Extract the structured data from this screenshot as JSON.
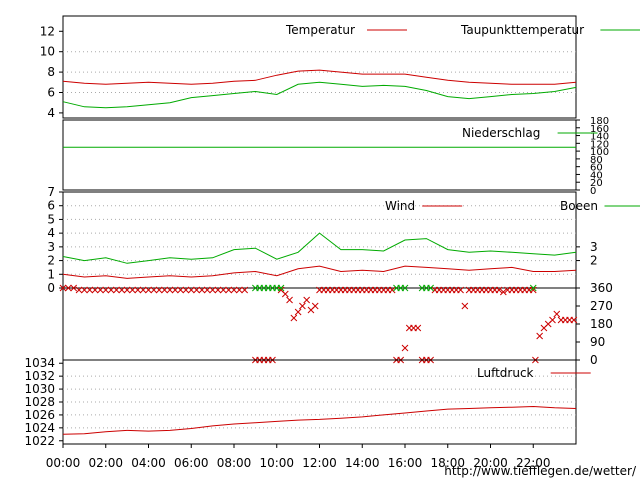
{
  "url": "http://www.tiefflegen.de/wetter/",
  "x_ticks": [
    "00:00",
    "02:00",
    "04:00",
    "06:00",
    "08:00",
    "10:00",
    "12:00",
    "14:00",
    "16:00",
    "18:00",
    "20:00",
    "22:00"
  ],
  "chart_data": [
    {
      "type": "line",
      "title": "",
      "x_range_hours": [
        0,
        24
      ],
      "ylim": [
        3.5,
        13.5
      ],
      "y_ticks": [
        4,
        6,
        8,
        10,
        12
      ],
      "legend_placement": "top-right",
      "grid": true,
      "series": [
        {
          "name": "Temperatur",
          "color": "#cc0000",
          "x": [
            0,
            1,
            2,
            3,
            4,
            5,
            6,
            7,
            8,
            9,
            10,
            11,
            12,
            13,
            14,
            15,
            16,
            17,
            18,
            19,
            20,
            21,
            22,
            23,
            24
          ],
          "values": [
            7.1,
            6.9,
            6.8,
            6.9,
            7.0,
            6.9,
            6.8,
            6.9,
            7.1,
            7.2,
            7.7,
            8.1,
            8.2,
            8.0,
            7.8,
            7.8,
            7.8,
            7.5,
            7.2,
            7.0,
            6.9,
            6.8,
            6.8,
            6.8,
            7.0
          ]
        },
        {
          "name": "Taupunkttemperatur",
          "color": "#00aa00",
          "x": [
            0,
            1,
            2,
            3,
            4,
            5,
            6,
            7,
            8,
            9,
            10,
            11,
            12,
            13,
            14,
            15,
            16,
            17,
            18,
            19,
            20,
            21,
            22,
            23,
            24
          ],
          "values": [
            5.1,
            4.6,
            4.5,
            4.6,
            4.8,
            5.0,
            5.5,
            5.7,
            5.9,
            6.1,
            5.8,
            6.8,
            7.0,
            6.8,
            6.6,
            6.7,
            6.6,
            6.2,
            5.6,
            5.4,
            5.6,
            5.8,
            5.9,
            6.1,
            6.5
          ]
        }
      ]
    },
    {
      "type": "line",
      "title": "",
      "x_range_hours": [
        0,
        24
      ],
      "ylim": [
        0,
        180
      ],
      "y_ticks": [
        0,
        20,
        40,
        60,
        80,
        100,
        120,
        140,
        160,
        180
      ],
      "legend_placement": "top-right",
      "series": [
        {
          "name": "Niederschlag",
          "color": "#00aa00",
          "x": [
            0,
            24
          ],
          "values": [
            110,
            110
          ]
        }
      ]
    },
    {
      "type": "line",
      "title": "",
      "x_range_hours": [
        0,
        24
      ],
      "ylim": [
        0,
        7
      ],
      "y_ticks": [
        0,
        1,
        2,
        3,
        4,
        5,
        6,
        7
      ],
      "right_ticks": [
        2,
        3
      ],
      "legend_placement": "top-right",
      "grid": true,
      "series": [
        {
          "name": "Wind",
          "color": "#cc0000",
          "x": [
            0,
            1,
            2,
            3,
            4,
            5,
            6,
            7,
            8,
            9,
            10,
            11,
            12,
            13,
            14,
            15,
            16,
            17,
            18,
            19,
            20,
            21,
            22,
            23,
            24
          ],
          "values": [
            1.0,
            0.8,
            0.9,
            0.7,
            0.8,
            0.9,
            0.8,
            0.9,
            1.1,
            1.2,
            0.9,
            1.4,
            1.6,
            1.2,
            1.3,
            1.2,
            1.6,
            1.5,
            1.4,
            1.3,
            1.4,
            1.5,
            1.2,
            1.2,
            1.3
          ]
        },
        {
          "name": "Boeen",
          "color": "#00aa00",
          "x": [
            0,
            1,
            2,
            3,
            4,
            5,
            6,
            7,
            8,
            9,
            10,
            11,
            12,
            13,
            14,
            15,
            16,
            17,
            18,
            19,
            20,
            21,
            22,
            23,
            24
          ],
          "values": [
            2.3,
            2.0,
            2.2,
            1.8,
            2.0,
            2.2,
            2.1,
            2.2,
            2.8,
            2.9,
            2.1,
            2.6,
            4.0,
            2.8,
            2.8,
            2.7,
            3.5,
            3.6,
            2.8,
            2.6,
            2.7,
            2.6,
            2.5,
            2.4,
            2.6
          ]
        }
      ]
    },
    {
      "type": "scatter",
      "title": "",
      "x_range_hours": [
        0,
        24
      ],
      "ylim": [
        0,
        360
      ],
      "right_ticks": [
        0,
        90,
        180,
        270,
        360
      ],
      "series": [
        {
          "name": "",
          "color": "#cc0000",
          "x": [
            0,
            0.25,
            0.5,
            0.75,
            1,
            1.25,
            1.5,
            1.75,
            2,
            2.25,
            2.5,
            2.75,
            3,
            3.25,
            3.5,
            3.75,
            4,
            4.25,
            4.5,
            4.75,
            5,
            5.25,
            5.5,
            5.75,
            6,
            6.25,
            6.5,
            6.75,
            7,
            7.25,
            7.5,
            7.75,
            8,
            8.25,
            8.5,
            9,
            9.2,
            9.4,
            9.6,
            9.8,
            10.2,
            10.4,
            10.6,
            10.8,
            11,
            11.2,
            11.4,
            11.6,
            11.8,
            12,
            12.2,
            12.4,
            12.6,
            12.8,
            13,
            13.2,
            13.4,
            13.6,
            13.8,
            14,
            14.2,
            14.4,
            14.6,
            14.8,
            15,
            15.2,
            15.4,
            15.6,
            15.8,
            16,
            16.2,
            16.4,
            16.6,
            16.8,
            17,
            17.2,
            17.4,
            17.6,
            17.8,
            18,
            18.2,
            18.4,
            18.6,
            18.8,
            19,
            19.2,
            19.4,
            19.6,
            19.8,
            20,
            20.2,
            20.4,
            20.6,
            20.8,
            21,
            21.2,
            21.4,
            21.6,
            21.8,
            22,
            22.1,
            22.3,
            22.5,
            22.7,
            22.9,
            23.1,
            23.3,
            23.5,
            23.7,
            23.9
          ],
          "values": [
            360,
            360,
            360,
            350,
            350,
            350,
            350,
            350,
            350,
            350,
            350,
            350,
            350,
            350,
            350,
            350,
            350,
            350,
            350,
            350,
            350,
            350,
            350,
            350,
            350,
            350,
            350,
            350,
            350,
            350,
            350,
            350,
            350,
            350,
            350,
            0,
            0,
            0,
            0,
            0,
            350,
            330,
            300,
            210,
            240,
            270,
            300,
            250,
            270,
            350,
            350,
            350,
            350,
            350,
            350,
            350,
            350,
            350,
            350,
            350,
            350,
            350,
            350,
            350,
            350,
            350,
            350,
            0,
            0,
            60,
            160,
            160,
            160,
            0,
            0,
            0,
            350,
            350,
            350,
            350,
            350,
            350,
            350,
            270,
            350,
            350,
            350,
            350,
            350,
            350,
            350,
            350,
            340,
            350,
            350,
            350,
            350,
            350,
            350,
            350,
            0,
            120,
            160,
            180,
            200,
            230,
            200,
            200,
            200,
            200
          ]
        },
        {
          "name": "",
          "color": "#00aa00",
          "x": [
            9,
            9.2,
            9.4,
            9.6,
            9.8,
            10,
            10.2,
            15.6,
            15.8,
            16,
            16.8,
            17,
            17.2,
            22
          ],
          "values": [
            360,
            360,
            360,
            360,
            360,
            360,
            360,
            360,
            360,
            360,
            360,
            360,
            360,
            360
          ]
        }
      ]
    },
    {
      "type": "line",
      "title": "",
      "x_range_hours": [
        0,
        24
      ],
      "ylim": [
        1021.5,
        1034.5
      ],
      "y_ticks": [
        1022,
        1024,
        1026,
        1028,
        1030,
        1032,
        1034
      ],
      "legend_placement": "top-right",
      "grid": true,
      "series": [
        {
          "name": "Luftdruck",
          "color": "#cc0000",
          "x": [
            0,
            1,
            2,
            3,
            4,
            5,
            6,
            7,
            8,
            9,
            10,
            11,
            12,
            13,
            14,
            15,
            16,
            17,
            18,
            19,
            20,
            21,
            22,
            23,
            24
          ],
          "values": [
            1023.0,
            1023.1,
            1023.4,
            1023.6,
            1023.5,
            1023.6,
            1023.9,
            1024.3,
            1024.6,
            1024.8,
            1025.0,
            1025.2,
            1025.3,
            1025.5,
            1025.7,
            1026.0,
            1026.3,
            1026.6,
            1026.9,
            1027.0,
            1027.1,
            1027.2,
            1027.3,
            1027.1,
            1027.0
          ]
        }
      ]
    }
  ]
}
